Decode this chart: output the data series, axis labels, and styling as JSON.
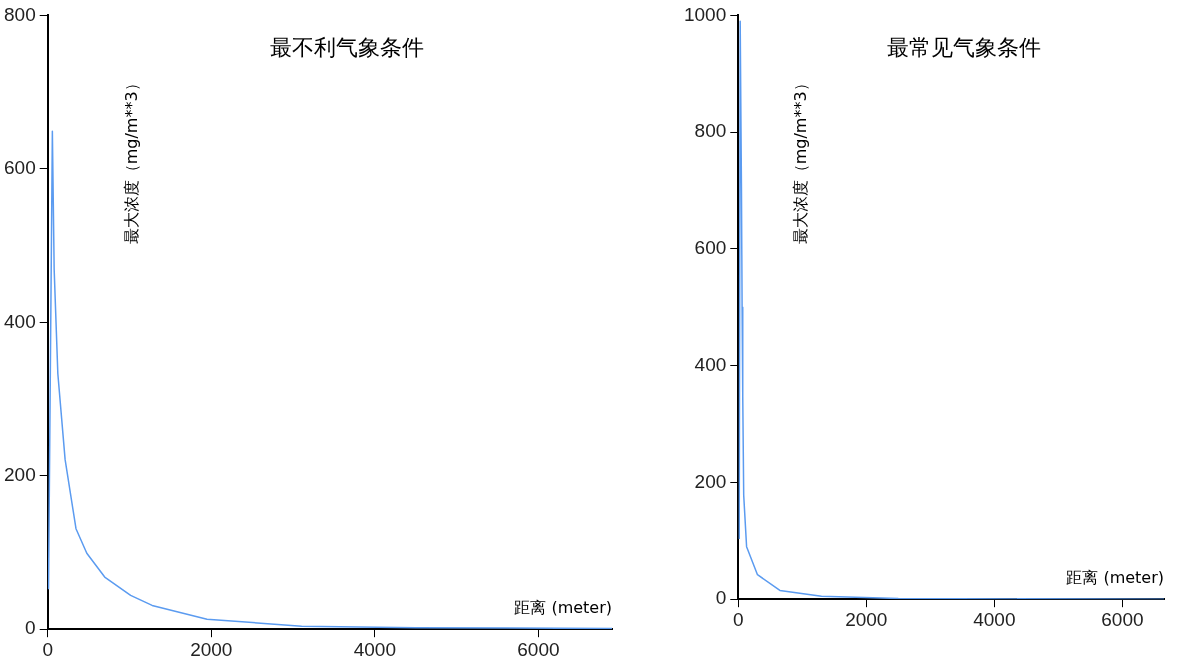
{
  "chart_data": [
    {
      "type": "line",
      "title": "最不利气象条件",
      "xlabel": "距离 (meter)",
      "ylabel": "最大浓度（mg/m**3）",
      "color": "#5b9bf0",
      "marker": "none",
      "grid": false,
      "legend": false,
      "x": [
        10,
        57,
        79,
        124,
        213,
        346,
        478,
        697,
        1014,
        1277,
        1948,
        3105,
        4500,
        6900
      ],
      "values": [
        52,
        649,
        469,
        333,
        221,
        131,
        99,
        68,
        44,
        31,
        13,
        4,
        2,
        1
      ],
      "xlim": [
        0,
        6900
      ],
      "ylim": [
        0,
        800
      ],
      "xticks": [
        0,
        2000,
        4000,
        6000
      ],
      "yticks": [
        0,
        200,
        400,
        600,
        800
      ]
    },
    {
      "type": "line",
      "title": "最常见气象条件",
      "xlabel": "距离 (meter)",
      "ylabel": "最大浓度（mg/m**3）",
      "color": "#5b9bf0",
      "marker": "none",
      "grid": false,
      "legend": false,
      "x": [
        15,
        30,
        50,
        60,
        70,
        85,
        130,
        300,
        650,
        1300,
        2500,
        6650
      ],
      "values": [
        103,
        990,
        700,
        500,
        347,
        178,
        90,
        42,
        15,
        5,
        1,
        0
      ],
      "xlim": [
        0,
        6650
      ],
      "ylim": [
        0,
        1000
      ],
      "xticks": [
        0,
        2000,
        4000,
        6000
      ],
      "yticks": [
        0,
        200,
        400,
        600,
        800,
        1000
      ]
    }
  ]
}
